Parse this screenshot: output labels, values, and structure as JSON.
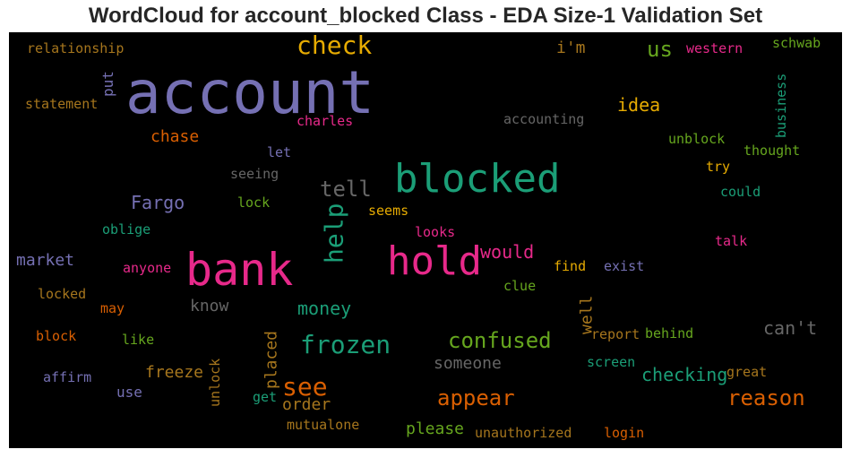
{
  "chart_data": {
    "type": "wordcloud",
    "title": "WordCloud for account_blocked Class - EDA Size-1 Validation Set",
    "background": "#000000",
    "words": [
      {
        "text": "account",
        "color": "#7570b3"
      },
      {
        "text": "bank",
        "color": "#e7298a"
      },
      {
        "text": "blocked",
        "color": "#1b9e77"
      },
      {
        "text": "hold",
        "color": "#e7298a"
      },
      {
        "text": "check",
        "color": "#e6ab02"
      },
      {
        "text": "frozen",
        "color": "#1b9e77"
      },
      {
        "text": "confused",
        "color": "#66a61e"
      },
      {
        "text": "see",
        "color": "#d95f02"
      },
      {
        "text": "appear",
        "color": "#d95f02"
      },
      {
        "text": "reason",
        "color": "#d95f02"
      },
      {
        "text": "help",
        "color": "#1b9e77"
      },
      {
        "text": "tell",
        "color": "#666666"
      },
      {
        "text": "us",
        "color": "#66a61e"
      },
      {
        "text": "money",
        "color": "#1b9e77"
      },
      {
        "text": "checking",
        "color": "#1b9e77"
      },
      {
        "text": "would",
        "color": "#e7298a"
      },
      {
        "text": "Fargo",
        "color": "#7570b3"
      },
      {
        "text": "i'm",
        "color": "#a6761d"
      },
      {
        "text": "idea",
        "color": "#e6ab02"
      },
      {
        "text": "chase",
        "color": "#d95f02"
      },
      {
        "text": "placed",
        "color": "#a6761d"
      },
      {
        "text": "can't",
        "color": "#666666"
      },
      {
        "text": "someone",
        "color": "#666666"
      },
      {
        "text": "please",
        "color": "#66a61e"
      },
      {
        "text": "order",
        "color": "#a6761d"
      },
      {
        "text": "freeze",
        "color": "#a6761d"
      },
      {
        "text": "market",
        "color": "#7570b3"
      },
      {
        "text": "know",
        "color": "#666666"
      },
      {
        "text": "well",
        "color": "#a6761d"
      },
      {
        "text": "use",
        "color": "#7570b3"
      },
      {
        "text": "accounting",
        "color": "#666666"
      },
      {
        "text": "relationship",
        "color": "#a6761d"
      },
      {
        "text": "statement",
        "color": "#a6761d"
      },
      {
        "text": "put",
        "color": "#7570b3"
      },
      {
        "text": "charles",
        "color": "#e7298a"
      },
      {
        "text": "western",
        "color": "#e7298a"
      },
      {
        "text": "schwab",
        "color": "#66a61e"
      },
      {
        "text": "business",
        "color": "#1b9e77"
      },
      {
        "text": "unblock",
        "color": "#66a61e"
      },
      {
        "text": "thought",
        "color": "#66a61e"
      },
      {
        "text": "let",
        "color": "#7570b3"
      },
      {
        "text": "seeing",
        "color": "#666666"
      },
      {
        "text": "try",
        "color": "#e6ab02"
      },
      {
        "text": "could",
        "color": "#1b9e77"
      },
      {
        "text": "lock",
        "color": "#66a61e"
      },
      {
        "text": "seems",
        "color": "#e6ab02"
      },
      {
        "text": "oblige",
        "color": "#1b9e77"
      },
      {
        "text": "looks",
        "color": "#e7298a"
      },
      {
        "text": "talk",
        "color": "#e7298a"
      },
      {
        "text": "anyone",
        "color": "#e7298a"
      },
      {
        "text": "find",
        "color": "#e6ab02"
      },
      {
        "text": "exist",
        "color": "#7570b3"
      },
      {
        "text": "locked",
        "color": "#a6761d"
      },
      {
        "text": "clue",
        "color": "#66a61e"
      },
      {
        "text": "may",
        "color": "#d95f02"
      },
      {
        "text": "block",
        "color": "#d95f02"
      },
      {
        "text": "like",
        "color": "#66a61e"
      },
      {
        "text": "report",
        "color": "#a6761d"
      },
      {
        "text": "behind",
        "color": "#66a61e"
      },
      {
        "text": "affirm",
        "color": "#7570b3"
      },
      {
        "text": "screen",
        "color": "#1b9e77"
      },
      {
        "text": "great",
        "color": "#a6761d"
      },
      {
        "text": "unlock",
        "color": "#a6761d"
      },
      {
        "text": "get",
        "color": "#1b9e77"
      },
      {
        "text": "mutualone",
        "color": "#a6761d"
      },
      {
        "text": "unauthorized",
        "color": "#a6761d"
      },
      {
        "text": "login",
        "color": "#d95f02"
      }
    ]
  }
}
